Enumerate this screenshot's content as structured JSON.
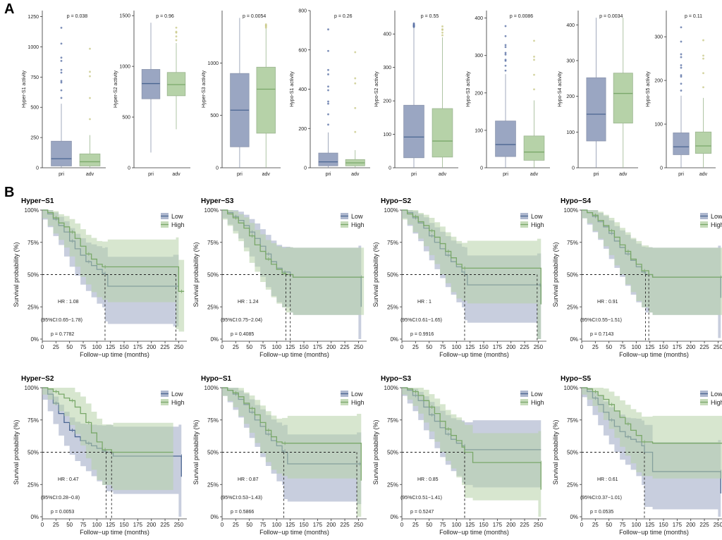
{
  "figure": {
    "label_a": "A",
    "label_b": "B"
  },
  "colors": {
    "low": "#4a6591",
    "high": "#7aa86a",
    "low_fill": "#9aa6c2",
    "high_fill": "#b6d2a8",
    "outlier_low": "#5c73a6",
    "outlier_high": "#c9c98a"
  },
  "chart_data": [
    {
      "type": "box",
      "title": "",
      "ylabel": "Hyper-S1 activity",
      "pvalue": "p = 0.038",
      "categories": [
        "pri",
        "adv"
      ],
      "ylim": [
        0,
        1300
      ],
      "yticks": [
        0,
        250,
        500,
        750,
        1000,
        1250
      ],
      "boxes": [
        {
          "category": "pri",
          "min": 0,
          "q1": 15,
          "median": 75,
          "q3": 220,
          "max": 530
        },
        {
          "category": "adv",
          "min": 0,
          "q1": 15,
          "median": 50,
          "q3": 115,
          "max": 270
        }
      ]
    },
    {
      "type": "box",
      "title": "",
      "ylabel": "Hyper-S2 activity",
      "pvalue": "p = 0.96",
      "categories": [
        "pri",
        "adv"
      ],
      "ylim": [
        0,
        1550
      ],
      "yticks": [
        0,
        500,
        1000,
        1500
      ],
      "boxes": [
        {
          "category": "pri",
          "min": 150,
          "q1": 680,
          "median": 830,
          "q3": 970,
          "max": 1430
        },
        {
          "category": "adv",
          "min": 380,
          "q1": 710,
          "median": 820,
          "q3": 940,
          "max": 1230
        }
      ]
    },
    {
      "type": "box",
      "title": "",
      "ylabel": "Hyper-S3 activity",
      "pvalue": "p = 0.0054",
      "categories": [
        "pri",
        "adv"
      ],
      "ylim": [
        0,
        1500
      ],
      "yticks": [
        0,
        500,
        1000
      ],
      "boxes": [
        {
          "category": "pri",
          "min": 0,
          "q1": 200,
          "median": 550,
          "q3": 900,
          "max": 1430
        },
        {
          "category": "adv",
          "min": 0,
          "q1": 330,
          "median": 750,
          "q3": 960,
          "max": 1330
        }
      ]
    },
    {
      "type": "box",
      "title": "",
      "ylabel": "Hypo-S1 activity",
      "pvalue": "p = 0.26",
      "categories": [
        "pri",
        "adv"
      ],
      "ylim": [
        0,
        800
      ],
      "yticks": [
        0,
        200,
        400,
        600,
        800
      ],
      "boxes": [
        {
          "category": "pri",
          "min": 0,
          "q1": 10,
          "median": 30,
          "q3": 75,
          "max": 180
        },
        {
          "category": "adv",
          "min": 0,
          "q1": 10,
          "median": 25,
          "q3": 42,
          "max": 90
        }
      ]
    },
    {
      "type": "box",
      "title": "",
      "ylabel": "Hypo-S2 activity",
      "pvalue": "p = 0.55",
      "categories": [
        "pri",
        "adv"
      ],
      "ylim": [
        0,
        470
      ],
      "yticks": [
        0,
        100,
        200,
        300,
        400
      ],
      "boxes": [
        {
          "category": "pri",
          "min": 0,
          "q1": 30,
          "median": 92,
          "q3": 187,
          "max": 420
        },
        {
          "category": "adv",
          "min": 0,
          "q1": 32,
          "median": 80,
          "q3": 177,
          "max": 390
        }
      ]
    },
    {
      "type": "box",
      "title": "",
      "ylabel": "Hypo-S3 activity",
      "pvalue": "p = 0.0086",
      "categories": [
        "pri",
        "adv"
      ],
      "ylim": [
        0,
        420
      ],
      "yticks": [
        0,
        100,
        200,
        300,
        400
      ],
      "boxes": [
        {
          "category": "pri",
          "min": 0,
          "q1": 30,
          "median": 62,
          "q3": 125,
          "max": 250
        },
        {
          "category": "adv",
          "min": 0,
          "q1": 20,
          "median": 42,
          "q3": 85,
          "max": 180
        }
      ]
    },
    {
      "type": "box",
      "title": "",
      "ylabel": "Hypo-S4 activity",
      "pvalue": "p = 0.0034",
      "categories": [
        "pri",
        "adv"
      ],
      "ylim": [
        0,
        440
      ],
      "yticks": [
        0,
        100,
        200,
        300,
        400
      ],
      "boxes": [
        {
          "category": "pri",
          "min": 0,
          "q1": 75,
          "median": 150,
          "q3": 252,
          "max": 420
        },
        {
          "category": "adv",
          "min": 0,
          "q1": 125,
          "median": 208,
          "q3": 265,
          "max": 420
        }
      ]
    },
    {
      "type": "box",
      "title": "",
      "ylabel": "Hypo-S5 activity",
      "pvalue": "p = 0.11",
      "categories": [
        "pri",
        "adv"
      ],
      "ylim": [
        0,
        360
      ],
      "yticks": [
        0,
        100,
        200,
        300
      ],
      "boxes": [
        {
          "category": "pri",
          "min": 0,
          "q1": 30,
          "median": 48,
          "q3": 80,
          "max": 165
        },
        {
          "category": "adv",
          "min": 0,
          "q1": 33,
          "median": 50,
          "q3": 82,
          "max": 160
        }
      ]
    },
    {
      "type": "km",
      "title": "Hyper−S1",
      "xlabel": "Follow−up time (months)",
      "ylabel": "Survival probability (%)",
      "hr": "HR : 1.08",
      "ci": "(95%CI:0.65−1.78)",
      "pvalue": "p = 0.7782",
      "legend": [
        "Low",
        "High"
      ],
      "median_low": 115,
      "median_high": 245,
      "series": [
        {
          "name": "Low",
          "x": [
            0,
            10,
            20,
            30,
            40,
            50,
            60,
            70,
            80,
            90,
            100,
            110,
            115,
            120,
            240,
            250
          ],
          "y": [
            100,
            97,
            93,
            88,
            83,
            76,
            70,
            65,
            60,
            57,
            54,
            51,
            50,
            41,
            41,
            41
          ]
        },
        {
          "name": "High",
          "x": [
            0,
            10,
            20,
            30,
            40,
            50,
            60,
            70,
            80,
            90,
            100,
            110,
            120,
            245,
            250,
            260
          ],
          "y": [
            100,
            98,
            94,
            90,
            87,
            83,
            78,
            72,
            66,
            62,
            58,
            56,
            56,
            56,
            37,
            37
          ]
        }
      ]
    },
    {
      "type": "km",
      "title": "Hyper−S3",
      "xlabel": "Follow−up time (months)",
      "ylabel": "Survival probability (%)",
      "hr": "HR : 1.24",
      "ci": "(95%CI:0.75−2.04)",
      "pvalue": "p = 0.4085",
      "legend": [
        "Low",
        "High"
      ],
      "median_low": 125,
      "median_high": 117,
      "series": [
        {
          "name": "Low",
          "x": [
            0,
            10,
            20,
            30,
            40,
            50,
            60,
            70,
            80,
            90,
            100,
            110,
            125,
            130,
            250,
            255
          ],
          "y": [
            100,
            98,
            95,
            92,
            88,
            83,
            78,
            72,
            66,
            60,
            55,
            52,
            50,
            48,
            48,
            25
          ]
        },
        {
          "name": "High",
          "x": [
            0,
            10,
            20,
            30,
            40,
            50,
            60,
            70,
            80,
            90,
            100,
            110,
            117,
            130,
            260
          ],
          "y": [
            100,
            97,
            94,
            90,
            86,
            80,
            73,
            68,
            62,
            58,
            54,
            51,
            50,
            48,
            48
          ]
        }
      ]
    },
    {
      "type": "km",
      "title": "Hypo−S2",
      "xlabel": "Follow−up time (months)",
      "ylabel": "Survival probability (%)",
      "hr": "HR : 1",
      "ci": "(95%CI:0.61−1.65)",
      "pvalue": "p = 0.9916",
      "legend": [
        "Low",
        "High"
      ],
      "median_low": 115,
      "median_high": 248,
      "series": [
        {
          "name": "Low",
          "x": [
            0,
            10,
            20,
            30,
            40,
            50,
            60,
            70,
            80,
            90,
            100,
            110,
            115,
            120,
            248,
            255
          ],
          "y": [
            100,
            98,
            94,
            90,
            86,
            80,
            75,
            70,
            65,
            60,
            56,
            52,
            50,
            42,
            42,
            27
          ]
        },
        {
          "name": "High",
          "x": [
            0,
            10,
            20,
            30,
            40,
            50,
            60,
            70,
            80,
            90,
            100,
            110,
            120,
            248,
            255
          ],
          "y": [
            100,
            97,
            95,
            91,
            88,
            84,
            79,
            74,
            68,
            63,
            58,
            55,
            55,
            55,
            27
          ]
        }
      ]
    },
    {
      "type": "km",
      "title": "Hypo−S4",
      "xlabel": "Follow−up time (months)",
      "ylabel": "Survival probability (%)",
      "hr": "HR : 0.91",
      "ci": "(95%CI:0.55−1.51)",
      "pvalue": "p = 0.7143",
      "legend": [
        "Low",
        "High"
      ],
      "median_low": 117,
      "median_high": 123,
      "series": [
        {
          "name": "Low",
          "x": [
            0,
            10,
            20,
            30,
            40,
            50,
            60,
            70,
            80,
            90,
            100,
            110,
            117,
            130,
            250,
            255
          ],
          "y": [
            100,
            98,
            95,
            91,
            87,
            82,
            76,
            71,
            66,
            61,
            56,
            52,
            50,
            48,
            48,
            32
          ]
        },
        {
          "name": "High",
          "x": [
            0,
            10,
            20,
            30,
            40,
            50,
            60,
            70,
            80,
            90,
            100,
            110,
            123,
            130,
            260
          ],
          "y": [
            100,
            98,
            96,
            92,
            88,
            84,
            79,
            73,
            68,
            62,
            58,
            53,
            50,
            48,
            48
          ]
        }
      ]
    },
    {
      "type": "km",
      "title": "Hyper−S2",
      "xlabel": "Follow−up time (months)",
      "ylabel": "Survival probability (%)",
      "hr": "HR : 0.47",
      "ci": "(95%CI:0.28−0.8)",
      "pvalue": "p = 0.0053",
      "legend": [
        "Low",
        "High"
      ],
      "median_low": 117,
      "median_high": 127,
      "series": [
        {
          "name": "Low",
          "x": [
            0,
            10,
            20,
            30,
            40,
            50,
            60,
            70,
            80,
            90,
            100,
            110,
            117,
            130,
            250,
            255
          ],
          "y": [
            100,
            95,
            88,
            80,
            73,
            67,
            62,
            59,
            57,
            55,
            53,
            51,
            50,
            47,
            47,
            31
          ]
        },
        {
          "name": "High",
          "x": [
            0,
            10,
            20,
            30,
            40,
            50,
            60,
            70,
            80,
            90,
            100,
            110,
            127,
            130,
            240
          ],
          "y": [
            100,
            99,
            97,
            95,
            92,
            90,
            85,
            80,
            73,
            65,
            58,
            52,
            50,
            50,
            50
          ]
        }
      ]
    },
    {
      "type": "km",
      "title": "Hypo−S1",
      "xlabel": "Follow−up time (months)",
      "ylabel": "Survival probability (%)",
      "hr": "HR : 0.87",
      "ci": "(95%CI:0.53−1.43)",
      "pvalue": "p = 0.5866",
      "legend": [
        "Low",
        "High"
      ],
      "median_low": 113,
      "median_high": 247,
      "series": [
        {
          "name": "Low",
          "x": [
            0,
            10,
            20,
            30,
            40,
            50,
            60,
            70,
            80,
            90,
            100,
            110,
            113,
            120,
            247,
            255
          ],
          "y": [
            100,
            98,
            95,
            91,
            87,
            81,
            75,
            70,
            64,
            59,
            55,
            51,
            50,
            41,
            41,
            41
          ]
        },
        {
          "name": "High",
          "x": [
            0,
            10,
            20,
            30,
            40,
            50,
            60,
            70,
            80,
            90,
            100,
            110,
            120,
            247,
            255
          ],
          "y": [
            100,
            98,
            96,
            93,
            88,
            84,
            79,
            73,
            67,
            62,
            58,
            57,
            57,
            57,
            28
          ]
        }
      ]
    },
    {
      "type": "km",
      "title": "Hypo−S3",
      "xlabel": "Follow−up time (months)",
      "ylabel": "Survival probability (%)",
      "hr": "HR : 0.85",
      "ci": "(95%CI:0.51−1.41)",
      "pvalue": "p = 0.5247",
      "legend": [
        "Low",
        "High"
      ],
      "median_low": 115,
      "median_high": 115,
      "series": [
        {
          "name": "Low",
          "x": [
            0,
            10,
            20,
            30,
            40,
            50,
            60,
            70,
            80,
            90,
            100,
            110,
            115,
            130,
            255
          ],
          "y": [
            100,
            98,
            94,
            90,
            85,
            79,
            74,
            69,
            64,
            60,
            57,
            55,
            52,
            52,
            52
          ]
        },
        {
          "name": "High",
          "x": [
            0,
            10,
            20,
            30,
            40,
            50,
            60,
            70,
            80,
            90,
            100,
            110,
            115,
            130,
            250,
            255
          ],
          "y": [
            100,
            99,
            97,
            94,
            90,
            85,
            80,
            74,
            68,
            63,
            59,
            54,
            50,
            42,
            42,
            21
          ]
        }
      ]
    },
    {
      "type": "km",
      "title": "Hypo−S5",
      "xlabel": "Follow−up time (months)",
      "ylabel": "Survival probability (%)",
      "hr": "HR : 0.61",
      "ci": "(95%CI:0.37−1.01)",
      "pvalue": "p = 0.0535",
      "legend": [
        "Low",
        "High"
      ],
      "median_low": 115,
      "median_high": null,
      "series": [
        {
          "name": "Low",
          "x": [
            0,
            10,
            20,
            30,
            40,
            50,
            60,
            70,
            80,
            90,
            100,
            110,
            115,
            130,
            250,
            255
          ],
          "y": [
            100,
            97,
            92,
            87,
            81,
            75,
            70,
            66,
            62,
            60,
            58,
            55,
            50,
            35,
            35,
            18
          ]
        },
        {
          "name": "High",
          "x": [
            0,
            10,
            20,
            30,
            40,
            50,
            60,
            70,
            80,
            90,
            100,
            110,
            130,
            260
          ],
          "y": [
            100,
            99,
            97,
            94,
            91,
            87,
            82,
            77,
            72,
            67,
            63,
            58,
            57,
            57
          ]
        }
      ]
    }
  ]
}
